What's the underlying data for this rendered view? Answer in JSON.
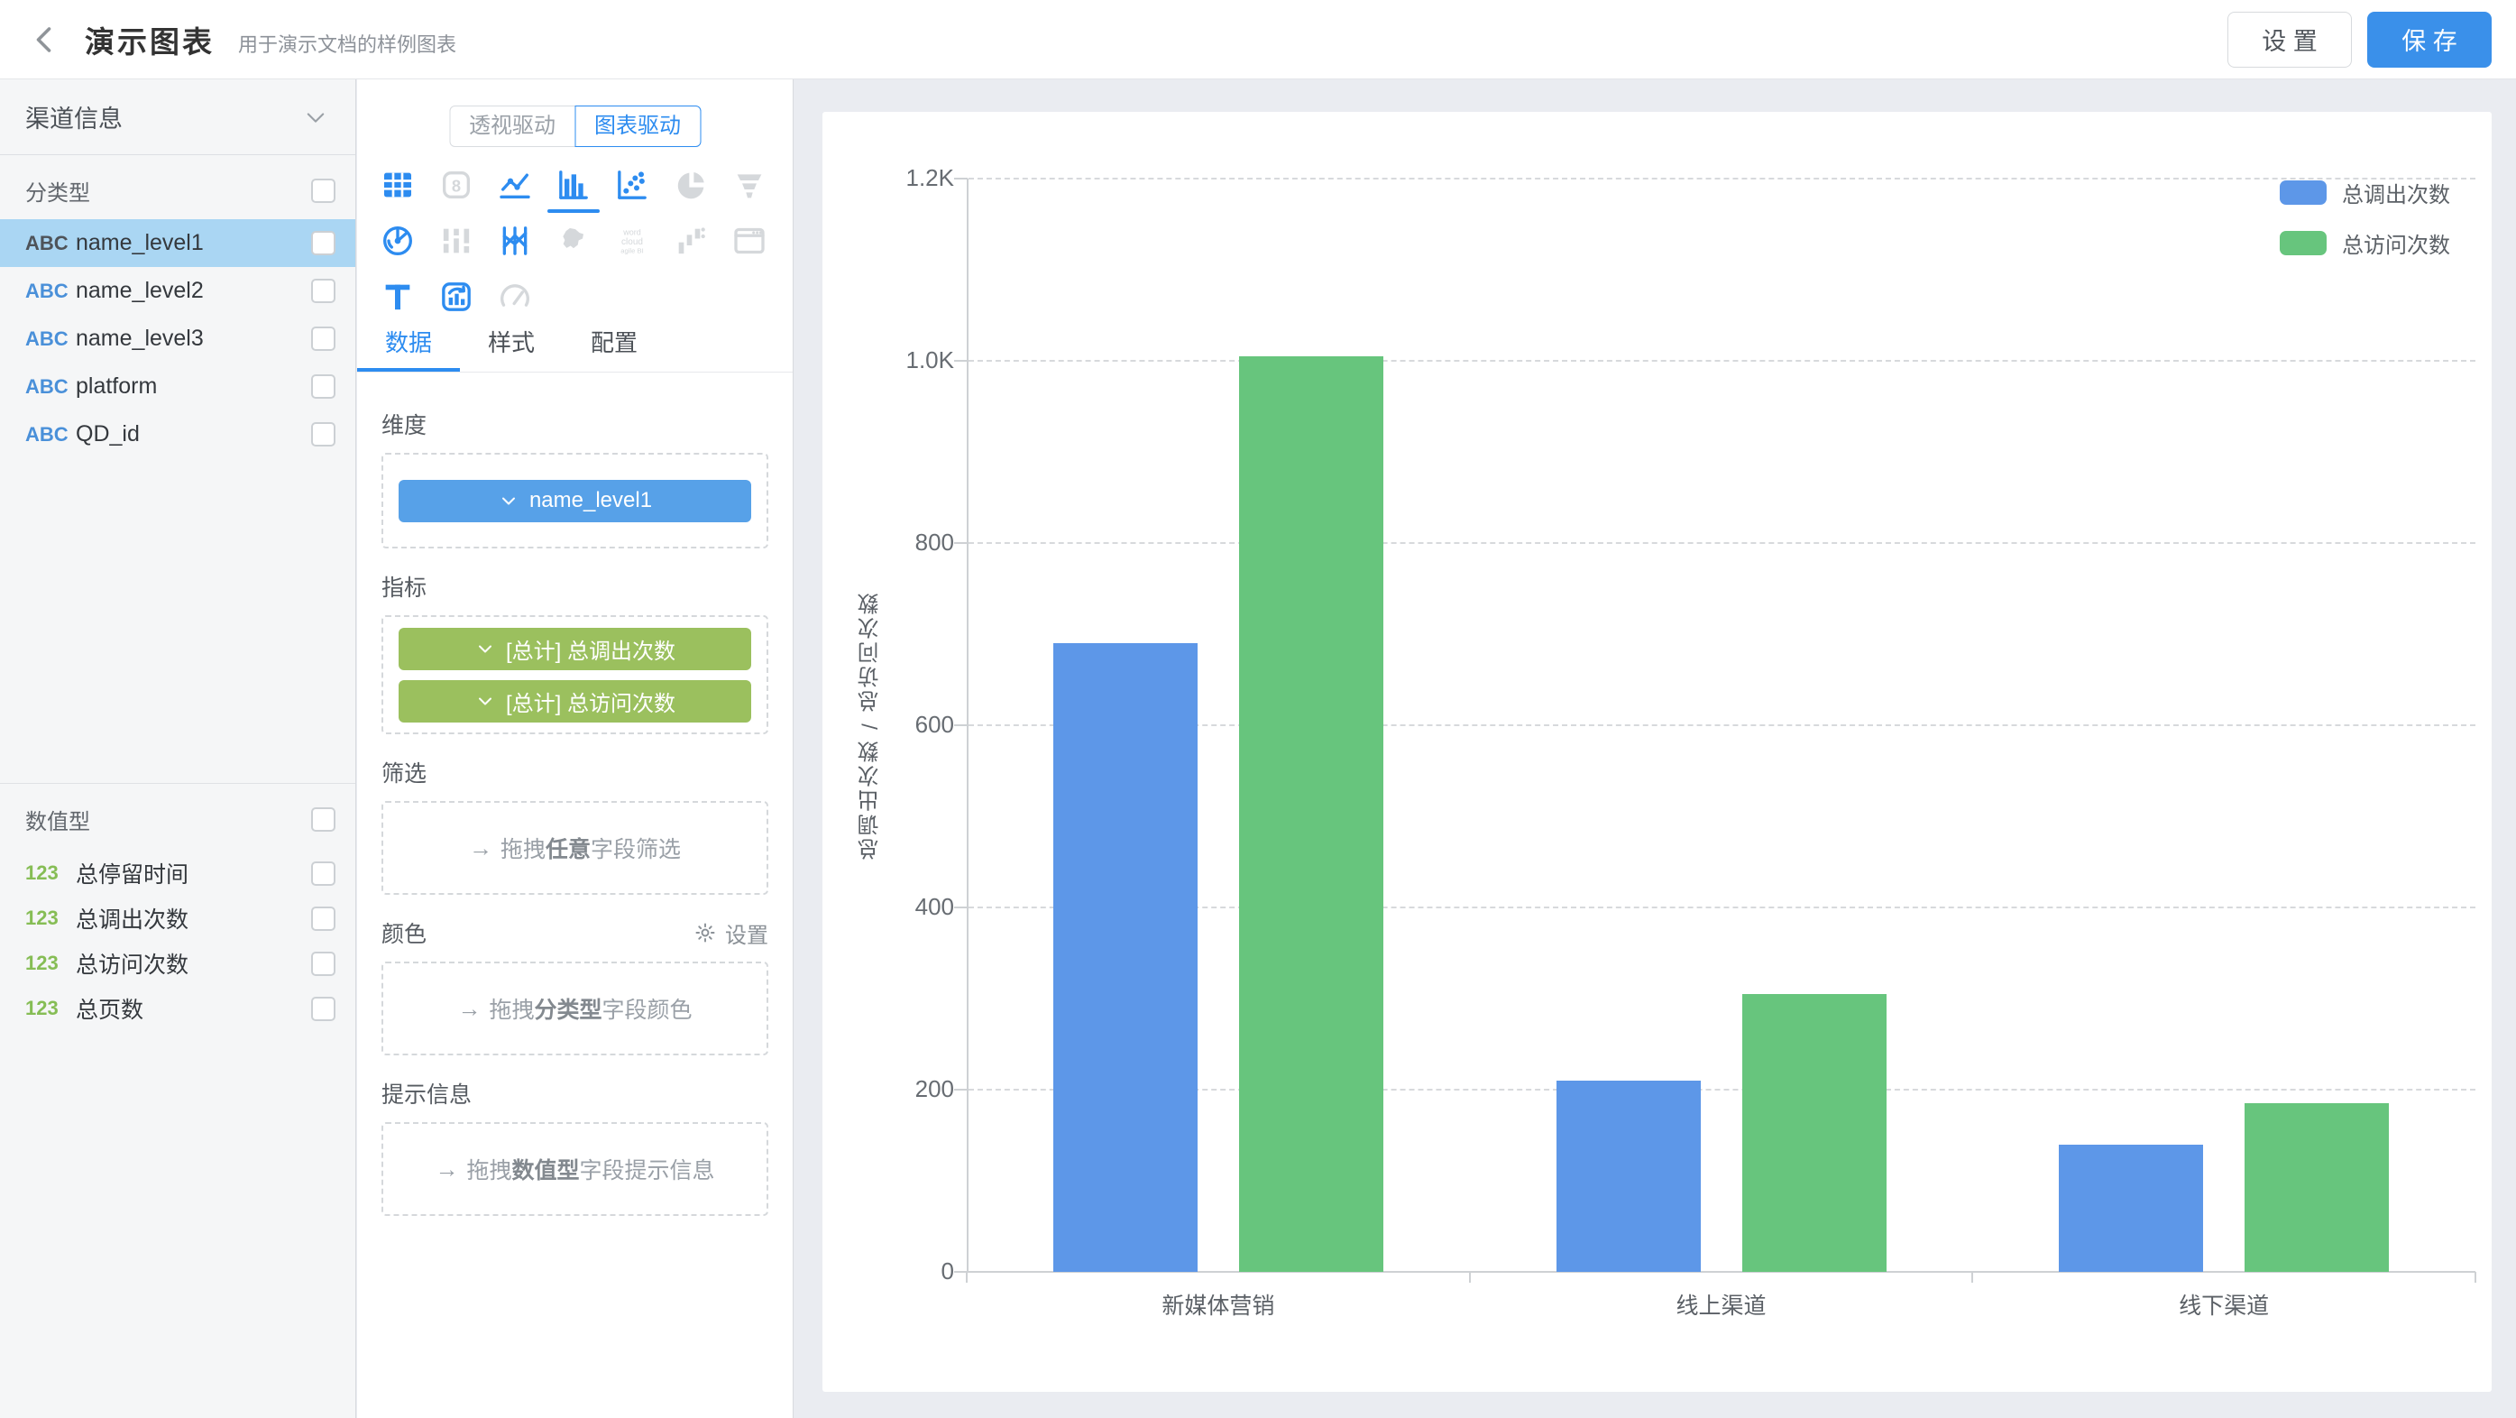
{
  "ui": {
    "drag_arrow": "→"
  },
  "colors": {
    "accent": "#2d8cf0",
    "save_button": "#3a90ea",
    "bar_blue": "#5d97e8",
    "bar_green": "#67c57d",
    "pill_blue": "#57a1e8",
    "pill_green": "#9bc05e",
    "abc_blue": "#4a90d9",
    "num_green": "#86bd55",
    "row_highlight": "#aad6f3"
  },
  "header": {
    "title": "演示图表",
    "subtitle": "用于演示文档的样例图表",
    "settings_label": "设 置",
    "save_label": "保 存"
  },
  "sidebar": {
    "dataset_label": "渠道信息",
    "categorical": {
      "label": "分类型",
      "items": [
        {
          "type": "ABC",
          "name": "name_level1",
          "selected": true
        },
        {
          "type": "ABC",
          "name": "name_level2",
          "selected": false
        },
        {
          "type": "ABC",
          "name": "name_level3",
          "selected": false
        },
        {
          "type": "ABC",
          "name": "platform",
          "selected": false
        },
        {
          "type": "ABC",
          "name": "QD_id",
          "selected": false
        }
      ]
    },
    "numeric": {
      "label": "数值型",
      "type_badge": "123",
      "items": [
        "总停留时间",
        "总调出次数",
        "总访问次数",
        "总页数"
      ]
    }
  },
  "panel": {
    "mode_tabs": [
      {
        "label": "透视驱动",
        "active": false
      },
      {
        "label": "图表驱动",
        "active": true
      }
    ],
    "chart_types": [
      {
        "name": "table",
        "state": "enabled",
        "selected": false
      },
      {
        "name": "counter",
        "state": "disabled",
        "selected": false
      },
      {
        "name": "line",
        "state": "enabled",
        "selected": false
      },
      {
        "name": "bar",
        "state": "enabled",
        "selected": true
      },
      {
        "name": "scatter",
        "state": "enabled",
        "selected": false
      },
      {
        "name": "pie",
        "state": "disabled",
        "selected": false
      },
      {
        "name": "funnel",
        "state": "disabled",
        "selected": false
      },
      {
        "name": "radar",
        "state": "enabled",
        "selected": false
      },
      {
        "name": "sankey",
        "state": "disabled",
        "selected": false
      },
      {
        "name": "parallel",
        "state": "enabled",
        "selected": false
      },
      {
        "name": "map",
        "state": "disabled",
        "selected": false
      },
      {
        "name": "wordcloud",
        "state": "disabled",
        "selected": false
      },
      {
        "name": "waterfall",
        "state": "disabled",
        "selected": false
      },
      {
        "name": "iframe",
        "state": "disabled",
        "selected": false
      },
      {
        "name": "text",
        "state": "enabled",
        "selected": false
      },
      {
        "name": "richtext",
        "state": "enabled",
        "selected": false
      },
      {
        "name": "gauge",
        "state": "disabled",
        "selected": false
      }
    ],
    "counter_icon_text": "8",
    "wordcloud_icon_text": [
      "word",
      "cloud",
      "agile BI"
    ],
    "tabs": [
      {
        "label": "数据",
        "active": true
      },
      {
        "label": "样式",
        "active": false
      },
      {
        "label": "配置",
        "active": false
      }
    ],
    "sections": {
      "dimension": {
        "label": "维度",
        "pills": [
          {
            "text": "name_level1"
          }
        ]
      },
      "metrics": {
        "label": "指标",
        "pills": [
          {
            "text": "[总计] 总调出次数"
          },
          {
            "text": "[总计] 总访问次数"
          }
        ]
      },
      "filter": {
        "label": "筛选",
        "placeholder": {
          "prefix": "拖拽",
          "bold": "任意",
          "suffix": "字段筛选"
        }
      },
      "color": {
        "label": "颜色",
        "action": "设置",
        "placeholder": {
          "prefix": "拖拽",
          "bold": "分类型",
          "suffix": "字段颜色"
        }
      },
      "tooltip": {
        "label": "提示信息",
        "placeholder": {
          "prefix": "拖拽",
          "bold": "数值型",
          "suffix": "字段提示信息"
        }
      }
    }
  },
  "chart_data": {
    "type": "bar",
    "categories": [
      "新媒体营销",
      "线上渠道",
      "线下渠道"
    ],
    "series": [
      {
        "name": "总调出次数",
        "color": "#5d97e8",
        "values": [
          690,
          210,
          140
        ]
      },
      {
        "name": "总访问次数",
        "color": "#67c57d",
        "values": [
          1005,
          305,
          185
        ]
      }
    ],
    "title": "",
    "xlabel": "",
    "ylabel": "总调出次数 / 总访问次数",
    "ylim": [
      0,
      1200
    ],
    "yticks": [
      {
        "v": 0,
        "label": "0"
      },
      {
        "v": 200,
        "label": "200"
      },
      {
        "v": 400,
        "label": "400"
      },
      {
        "v": 600,
        "label": "600"
      },
      {
        "v": 800,
        "label": "800"
      },
      {
        "v": 1000,
        "label": "1.0K"
      },
      {
        "v": 1200,
        "label": "1.2K"
      }
    ],
    "grid": "horizontal-dashed",
    "legend_position": "top-right"
  }
}
